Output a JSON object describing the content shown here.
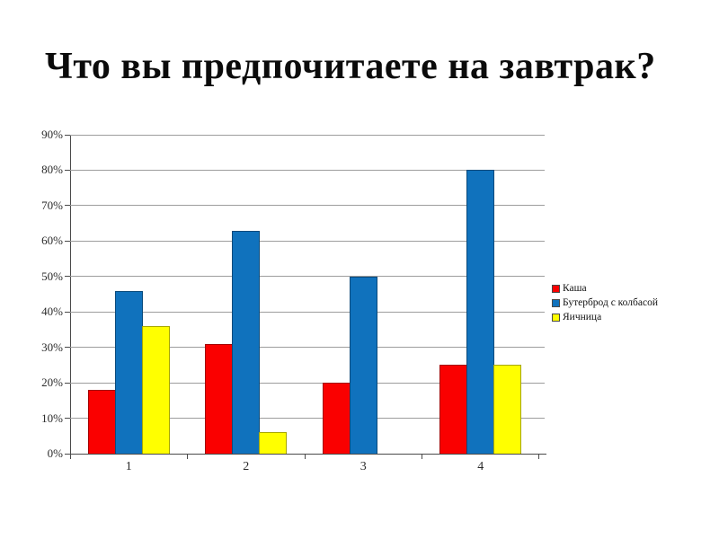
{
  "title": "Что вы предпочитаете на завтрак?",
  "chart_data": {
    "type": "bar",
    "title": "Что вы предпочитаете на завтрак?",
    "categories": [
      "1",
      "2",
      "3",
      "4"
    ],
    "series": [
      {
        "name": "Каша",
        "color": "#FA0000",
        "values": [
          18,
          31,
          20,
          25
        ]
      },
      {
        "name": "Бутерброд с колбасой",
        "color": "#1072BD",
        "values": [
          46,
          63,
          50,
          80
        ]
      },
      {
        "name": "Яичница",
        "color": "#FFFF00",
        "values": [
          36,
          6,
          0,
          25
        ]
      }
    ],
    "xlabel": "",
    "ylabel": "",
    "ylim": [
      0,
      90
    ],
    "ytick_step": 10,
    "ytick_labels": [
      "0%",
      "10%",
      "20%",
      "30%",
      "40%",
      "50%",
      "60%",
      "70%",
      "80%",
      "90%"
    ],
    "grid": true,
    "legend_position": "right"
  }
}
